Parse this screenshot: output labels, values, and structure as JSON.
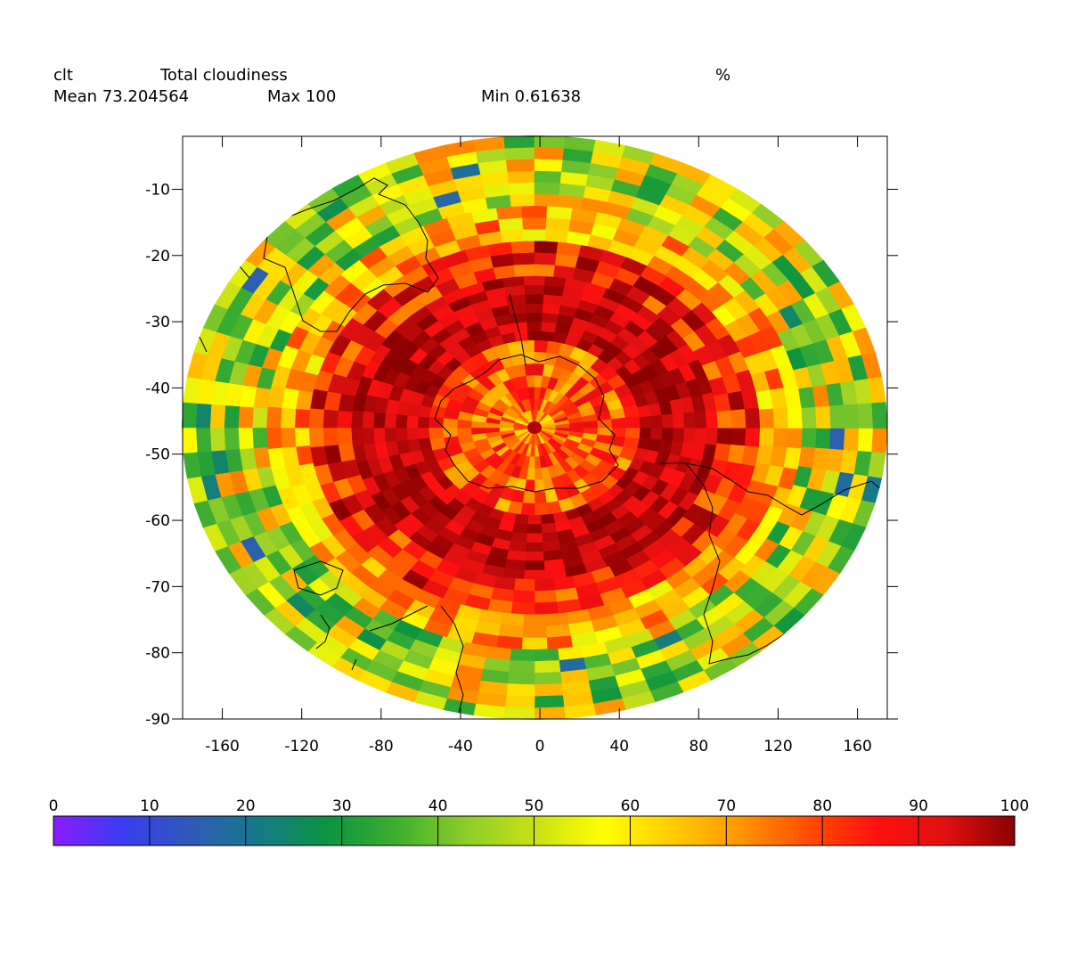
{
  "header": {
    "variable": "clt",
    "long_name": "Total cloudiness",
    "units": "%",
    "mean_label": "Mean 73.204564",
    "max_label": "Max 100",
    "min_label": "Min 0.61638"
  },
  "chart_data": {
    "type": "heatmap",
    "title": "Total cloudiness",
    "projection": "south polar (map of cloud fraction, %)",
    "x_ticks": [
      -160,
      -120,
      -80,
      -40,
      0,
      40,
      80,
      120,
      160
    ],
    "y_ticks": [
      -10,
      -20,
      -30,
      -40,
      -50,
      -60,
      -70,
      -80,
      -90
    ],
    "xlim": [
      -180,
      175
    ],
    "ylim": [
      -90,
      -2
    ],
    "colorbar": {
      "min": 0,
      "max": 100,
      "ticks": [
        0,
        10,
        20,
        30,
        40,
        50,
        60,
        70,
        80,
        90,
        100
      ],
      "colors": [
        "#8a1cff",
        "#3a3cf0",
        "#2f5ab8",
        "#177a88",
        "#0c9440",
        "#3fae30",
        "#8ccc2a",
        "#c8e018",
        "#ffff00",
        "#ffcc00",
        "#ff9600",
        "#ff4d00",
        "#ff1010",
        "#e01010",
        "#8b0000"
      ]
    },
    "stats": {
      "mean": 73.204564,
      "max": 100,
      "min": 0.61638
    },
    "rings": [
      {
        "lat_range": [
          -90,
          -84
        ],
        "typical": 70
      },
      {
        "lat_range": [
          -84,
          -66
        ],
        "typical": 78
      },
      {
        "lat_range": [
          -66,
          -48
        ],
        "typical": 94
      },
      {
        "lat_range": [
          -48,
          -36
        ],
        "typical": 86
      },
      {
        "lat_range": [
          -36,
          -24
        ],
        "typical": 68
      },
      {
        "lat_range": [
          -24,
          0
        ],
        "typical": 52
      }
    ]
  }
}
